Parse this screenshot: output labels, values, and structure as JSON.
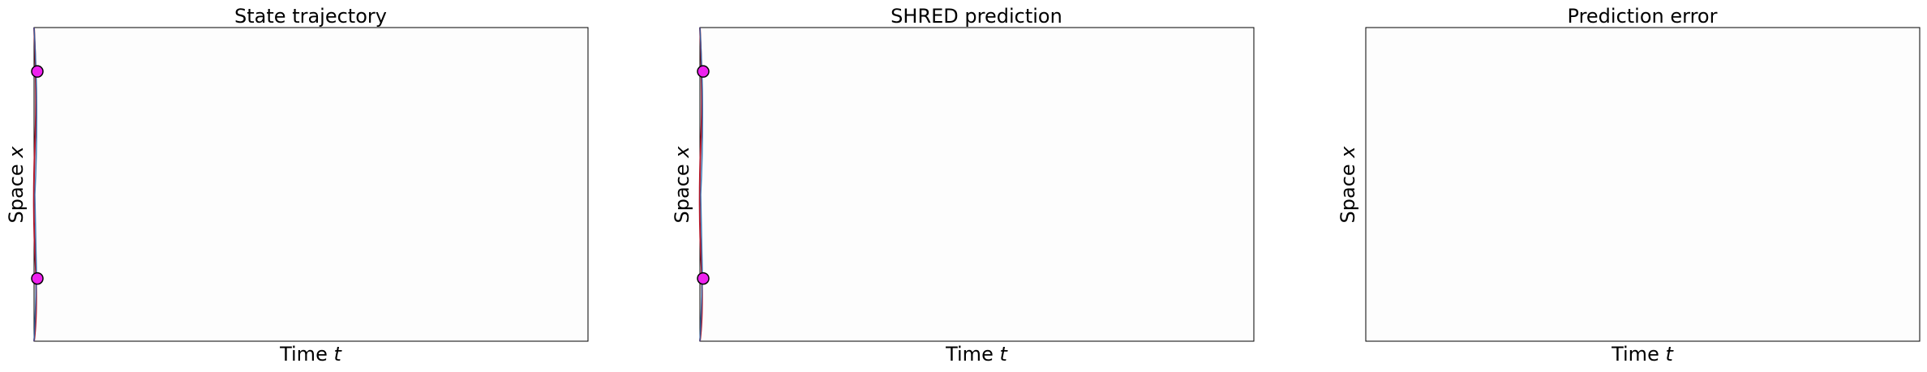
{
  "chart_data": [
    {
      "type": "heatmap",
      "title": "State trajectory",
      "xlabel": "Time t",
      "xlabel_parts": {
        "text": "Time ",
        "var": "t"
      },
      "ylabel": "Space x",
      "ylabel_parts": {
        "text": "Space ",
        "var": "x"
      },
      "xticks": [],
      "yticks": [],
      "grid": false,
      "sensors": [
        {
          "t": 0,
          "x": 0.86
        },
        {
          "t": 0,
          "x": 0.2
        }
      ],
      "field_note_colors": {
        "positive": "#b2182b",
        "negative": "#2166ac",
        "zero": "#fdfdfd"
      }
    },
    {
      "type": "heatmap",
      "title": "SHRED prediction",
      "xlabel": "Time t",
      "xlabel_parts": {
        "text": "Time ",
        "var": "t"
      },
      "ylabel": "Space x",
      "ylabel_parts": {
        "text": "Space ",
        "var": "x"
      },
      "xticks": [],
      "yticks": [],
      "grid": false,
      "sensors": [
        {
          "t": 0,
          "x": 0.86
        },
        {
          "t": 0,
          "x": 0.2
        }
      ],
      "field_note_colors": {
        "positive": "#b2182b",
        "negative": "#2166ac",
        "zero": "#fdfdfd"
      }
    },
    {
      "type": "heatmap",
      "title": "Prediction error",
      "xlabel": "Time t",
      "xlabel_parts": {
        "text": "Time ",
        "var": "t"
      },
      "ylabel": "Space x",
      "ylabel_parts": {
        "text": "Space ",
        "var": "x"
      },
      "xticks": [],
      "yticks": [],
      "grid": false,
      "sensors": []
    }
  ],
  "colors": {
    "sensor_fill": "#ee22ee",
    "sensor_edge": "#000000",
    "frame": "#000000",
    "background": "#fdfdfd"
  }
}
